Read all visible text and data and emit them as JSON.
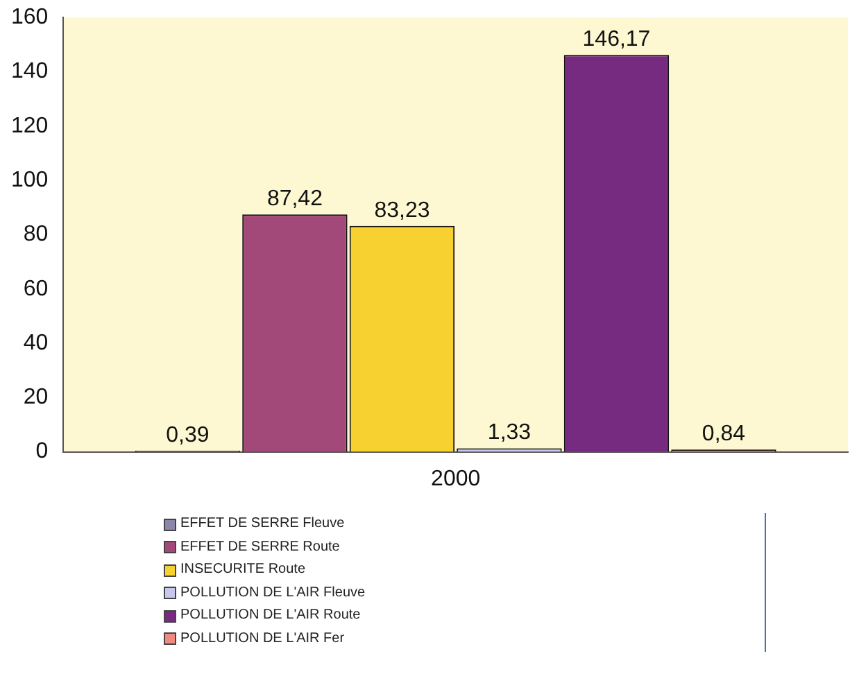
{
  "chart_data": {
    "type": "bar",
    "categories": [
      "2000"
    ],
    "series": [
      {
        "name": "EFFET DE SERRE Fleuve",
        "color": "#8c86a8",
        "values": [
          0.39
        ],
        "value_labels": [
          "0,39"
        ]
      },
      {
        "name": "EFFET DE SERRE Route",
        "color": "#a3497a",
        "values": [
          87.42
        ],
        "value_labels": [
          "87,42"
        ]
      },
      {
        "name": "INSECURITE Route",
        "color": "#f7d130",
        "values": [
          83.23
        ],
        "value_labels": [
          "83,23"
        ]
      },
      {
        "name": "POLLUTION DE L'AIR Fleuve",
        "color": "#c8c8ee",
        "values": [
          1.33
        ],
        "value_labels": [
          "1,33"
        ]
      },
      {
        "name": "POLLUTION DE L'AIR Route",
        "color": "#762a80",
        "values": [
          146.17
        ],
        "value_labels": [
          "146,17"
        ]
      },
      {
        "name": "POLLUTION DE L'AIR Fer",
        "color": "#f08a80",
        "values": [
          0.84
        ],
        "value_labels": [
          "0,84"
        ]
      }
    ],
    "ylim": [
      0,
      160
    ],
    "yticks": [
      0,
      20,
      40,
      60,
      80,
      100,
      120,
      140,
      160
    ],
    "grid": false,
    "legend": "bottom left"
  }
}
